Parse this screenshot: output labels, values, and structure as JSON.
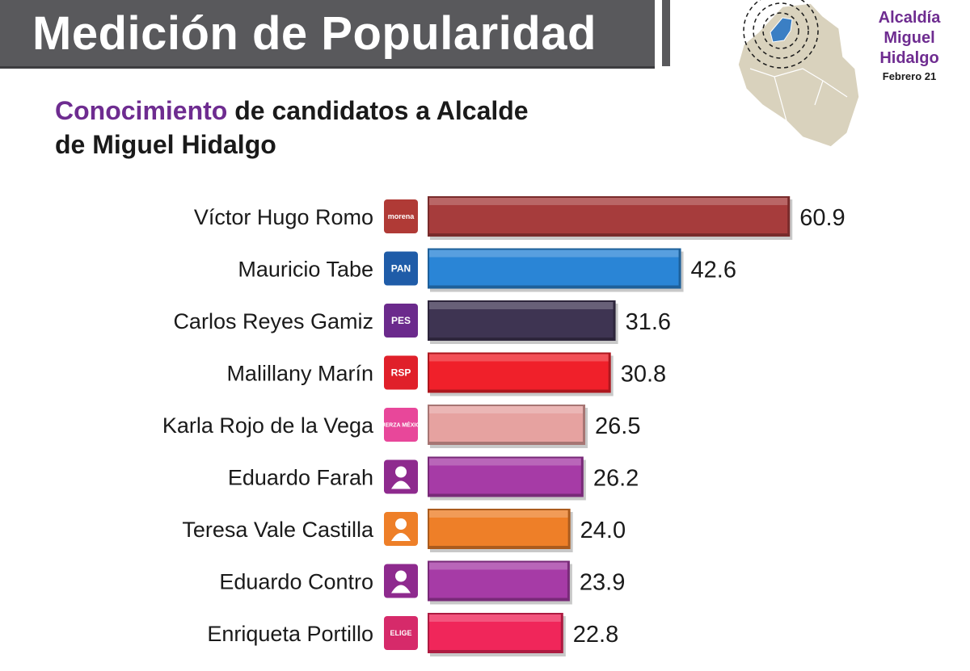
{
  "header": {
    "title": "Medición de Popularidad"
  },
  "subtitle": {
    "highlight": "Conocimiento",
    "rest_line1": " de candidatos a Alcalde",
    "line2": "de Miguel Hidalgo"
  },
  "region": {
    "title": "Alcaldía Miguel Hidalgo",
    "date": "Febrero 21"
  },
  "colors": {
    "accent_purple": "#6e2c90",
    "banner_gray": "#59595c",
    "map_fill": "#d9d2bd",
    "map_highlight": "#3b7fc4"
  },
  "chart_data": {
    "type": "bar",
    "orientation": "horizontal",
    "title": "Conocimiento de candidatos a Alcalde de Miguel Hidalgo",
    "xlim": [
      0,
      70
    ],
    "grid": false,
    "legend": "none",
    "categories": [
      "Víctor Hugo Romo",
      "Mauricio Tabe",
      "Carlos Reyes Gamiz",
      "Malillany Marín",
      "Karla Rojo de la Vega",
      "Eduardo Farah",
      "Teresa Vale Castilla",
      "Eduardo Contro",
      "Enriqueta Portillo"
    ],
    "values": [
      60.9,
      42.6,
      31.6,
      30.8,
      26.5,
      26.2,
      24.0,
      23.9,
      22.8
    ],
    "value_labels": [
      "60.9",
      "42.6",
      "31.6",
      "30.8",
      "26.5",
      "26.2",
      "24.0",
      "23.9",
      "22.8"
    ],
    "bar_colors": [
      "#a63c3c",
      "#2a85d6",
      "#3e3452",
      "#f0202a",
      "#e6a2a0",
      "#a63ba6",
      "#ee7f28",
      "#a63ba6",
      "#f0265a"
    ],
    "party_logos": [
      {
        "name": "morena-pt-pvem-logo",
        "text": "morena",
        "color": "#b03a36"
      },
      {
        "name": "pan-prd-logo",
        "text": "PAN",
        "color": "#1f5ca8"
      },
      {
        "name": "pes-logo",
        "text": "PES",
        "color": "#6b2a8c"
      },
      {
        "name": "rsp-logo",
        "text": "RSP",
        "color": "#e0202a"
      },
      {
        "name": "fuerza-mexico-logo",
        "text": "FUERZA MÉXICO",
        "color": "#e8479a"
      },
      {
        "name": "independent-candidate-logo",
        "text": "",
        "color": "#8e2a8e"
      },
      {
        "name": "movimiento-ciudadano-logo",
        "text": "",
        "color": "#ee7f28"
      },
      {
        "name": "independent-candidate-logo",
        "text": "",
        "color": "#8e2a8e"
      },
      {
        "name": "elige-logo",
        "text": "ELIGE",
        "color": "#d62a6a"
      }
    ]
  }
}
